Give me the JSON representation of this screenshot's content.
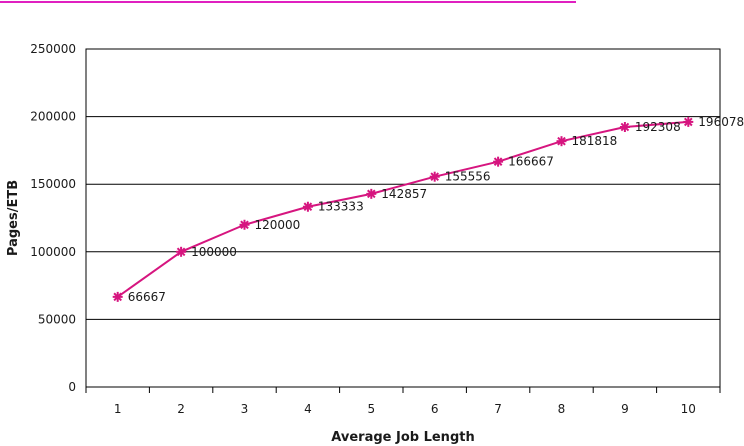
{
  "chart_data": {
    "type": "line",
    "title": "",
    "xlabel": "Average Job Length",
    "ylabel": "Pages/ETB",
    "x": [
      1,
      2,
      3,
      4,
      5,
      6,
      7,
      8,
      9,
      10
    ],
    "series": [
      {
        "values": [
          66667,
          100000,
          120000,
          133333,
          142857,
          155556,
          166667,
          181818,
          192308,
          196078
        ],
        "data_labels": [
          "66667",
          "100000",
          "120000",
          "133333",
          "142857",
          "155556",
          "166667",
          "181818",
          "192308",
          "196078"
        ]
      }
    ],
    "ylim": [
      0,
      250000
    ],
    "yticks": [
      0,
      50000,
      100000,
      150000,
      200000,
      250000
    ],
    "grid": "horizontal",
    "legend": "none",
    "marker": "asterisk"
  },
  "colors": {
    "series": "#d6157f",
    "top_rule": "#e020c0",
    "gridline": "#000000",
    "text": "#1a1a1a"
  }
}
